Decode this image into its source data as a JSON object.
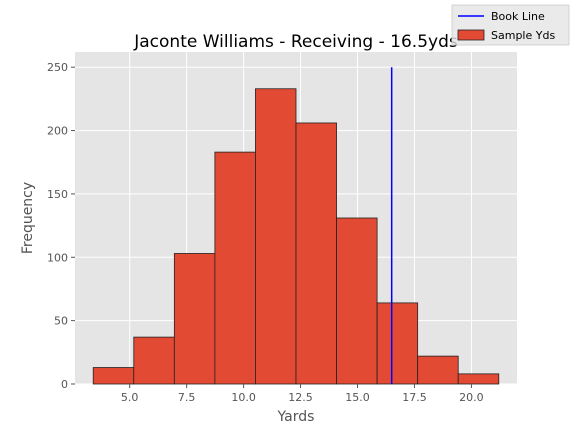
{
  "chart_data": {
    "type": "bar",
    "title": "Jaconte Williams - Receiving - 16.5yds",
    "xlabel": "Yards",
    "ylabel": "Frequency",
    "xlim": [
      2.6,
      22.0
    ],
    "ylim": [
      0,
      262
    ],
    "xticks": [
      5.0,
      7.5,
      10.0,
      12.5,
      15.0,
      17.5,
      20.0
    ],
    "xtick_labels": [
      "5.0",
      "7.5",
      "10.0",
      "12.5",
      "15.0",
      "17.5",
      "20.0"
    ],
    "yticks": [
      0,
      50,
      100,
      150,
      200,
      250
    ],
    "ytick_labels": [
      "0",
      "50",
      "100",
      "150",
      "200",
      "250"
    ],
    "grid": true,
    "legend_position": "top-right",
    "bins": [
      {
        "x0": 3.4,
        "x1": 5.18,
        "count": 13
      },
      {
        "x0": 5.18,
        "x1": 6.96,
        "count": 37
      },
      {
        "x0": 6.96,
        "x1": 8.74,
        "count": 103
      },
      {
        "x0": 8.74,
        "x1": 10.52,
        "count": 183
      },
      {
        "x0": 10.52,
        "x1": 12.3,
        "count": 233
      },
      {
        "x0": 12.3,
        "x1": 14.08,
        "count": 206
      },
      {
        "x0": 14.08,
        "x1": 15.86,
        "count": 131
      },
      {
        "x0": 15.86,
        "x1": 17.64,
        "count": 64
      },
      {
        "x0": 17.64,
        "x1": 19.42,
        "count": 22
      },
      {
        "x0": 19.42,
        "x1": 21.2,
        "count": 8
      }
    ],
    "reference_line": {
      "name": "Book Line",
      "x": 16.5,
      "color": "#0000ff"
    },
    "series": [
      {
        "name": "Sample Yds",
        "color": "#e24a33",
        "edge_color": "#222222"
      }
    ],
    "colors": {
      "background": "#e5e5e5",
      "grid": "#ffffff",
      "text": "#555555",
      "title": "#000000"
    }
  }
}
